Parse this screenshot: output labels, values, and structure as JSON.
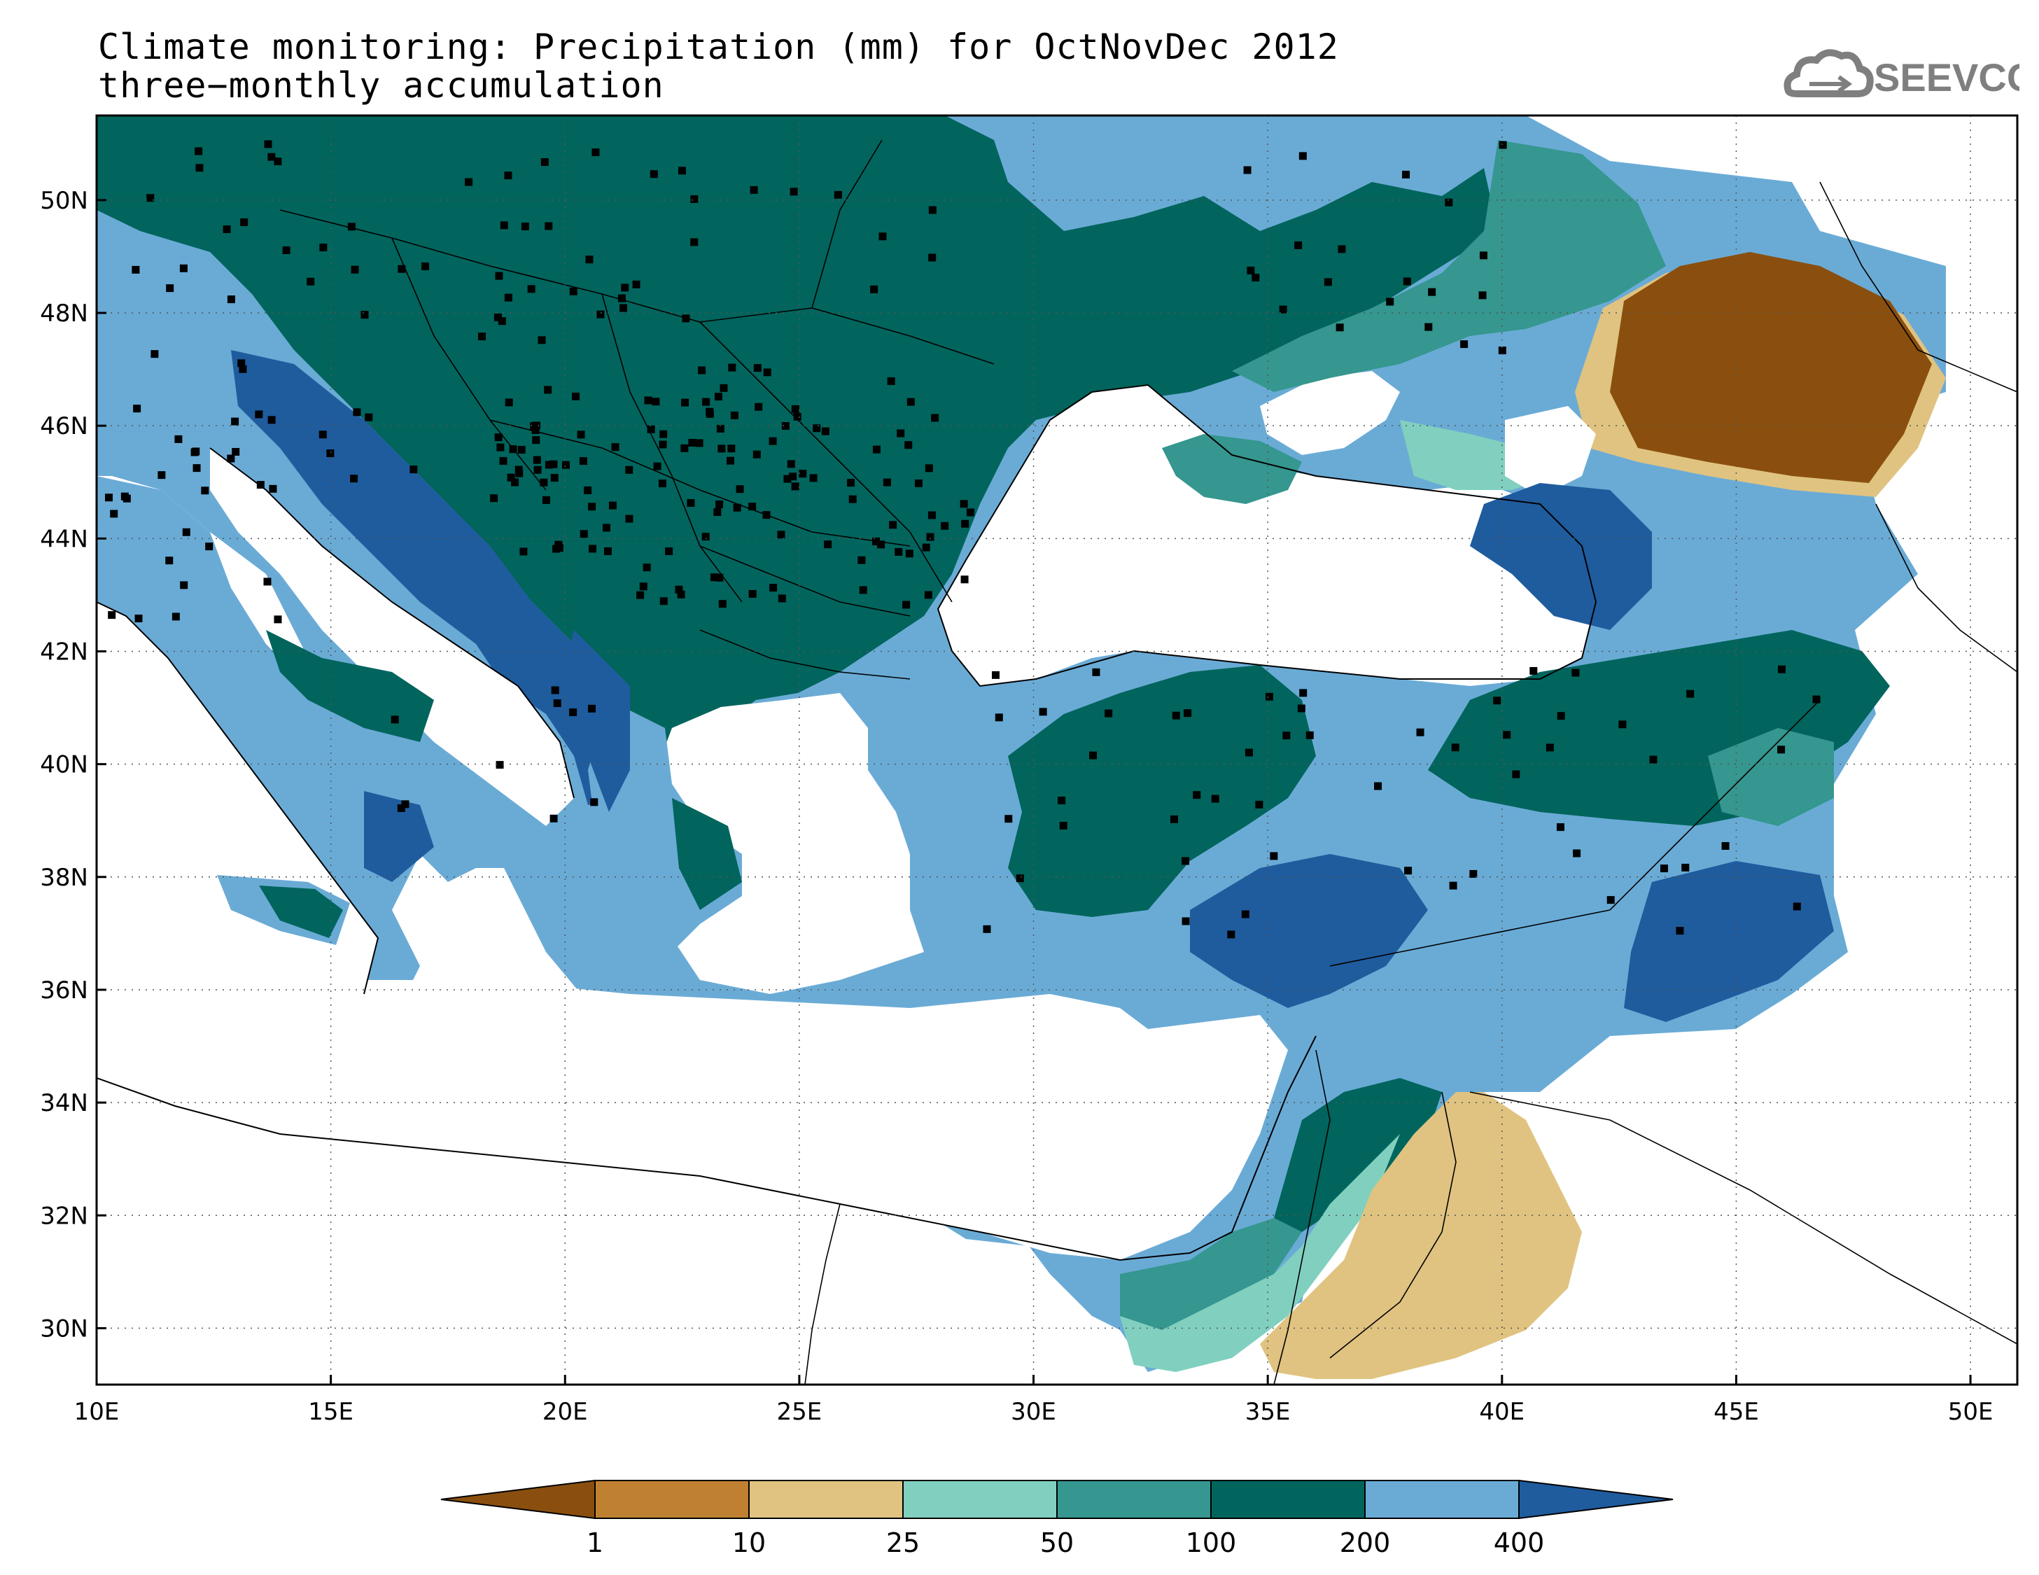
{
  "title": {
    "line1": "Climate monitoring: Precipitation (mm) for OctNovDec 2012",
    "line2": "three−monthly accumulation"
  },
  "logo": {
    "text": "SEEVCCC",
    "icon": "cloud-logo-icon"
  },
  "map": {
    "lon_range": [
      10,
      51
    ],
    "lat_range": [
      29,
      51.5
    ],
    "lon_ticks": [
      {
        "value": 10,
        "label": "10E"
      },
      {
        "value": 15,
        "label": "15E"
      },
      {
        "value": 20,
        "label": "20E"
      },
      {
        "value": 25,
        "label": "25E"
      },
      {
        "value": 30,
        "label": "30E"
      },
      {
        "value": 35,
        "label": "35E"
      },
      {
        "value": 40,
        "label": "40E"
      },
      {
        "value": 45,
        "label": "45E"
      },
      {
        "value": 50,
        "label": "50E"
      }
    ],
    "lat_ticks": [
      {
        "value": 30,
        "label": "30N"
      },
      {
        "value": 32,
        "label": "32N"
      },
      {
        "value": 34,
        "label": "34N"
      },
      {
        "value": 36,
        "label": "36N"
      },
      {
        "value": 38,
        "label": "38N"
      },
      {
        "value": 40,
        "label": "40N"
      },
      {
        "value": 42,
        "label": "42N"
      },
      {
        "value": 44,
        "label": "44N"
      },
      {
        "value": 46,
        "label": "46N"
      },
      {
        "value": 48,
        "label": "48N"
      },
      {
        "value": 50,
        "label": "50N"
      }
    ],
    "grid": "dotted"
  },
  "legend": {
    "colors": [
      "#8a4f0e",
      "#bf8131",
      "#e0c380",
      "#81d0bf",
      "#35978f",
      "#01655d",
      "#6aabd6",
      "#1f5c9e"
    ],
    "labels": [
      "1",
      "10",
      "25",
      "50",
      "100",
      "200",
      "400"
    ]
  },
  "colors": {
    "sea": "#ffffff",
    "border": "#000000",
    "station": "#000000"
  }
}
